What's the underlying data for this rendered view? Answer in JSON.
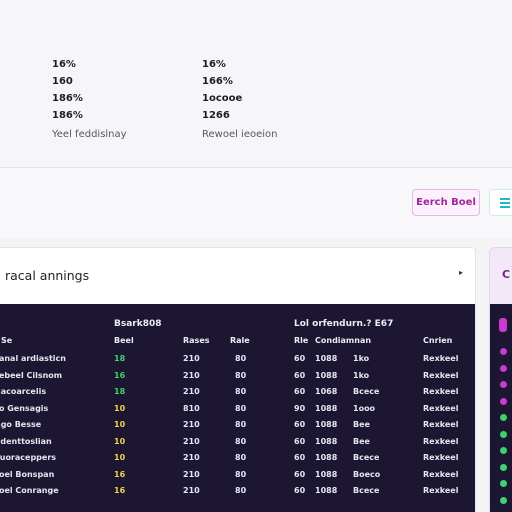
{
  "stats": {
    "left": {
      "values": [
        "16%",
        "160",
        "186%",
        "186%"
      ],
      "label": "Yeel feddislnay"
    },
    "right": {
      "values": [
        "16%",
        "166%",
        "1ocooe",
        "1266"
      ],
      "label": "Rewoel ieoeion"
    }
  },
  "toolbar": {
    "export_label": "Eerch Boel"
  },
  "card": {
    "title": "racal annings",
    "caret": "▸",
    "group_left": "Bsark808",
    "group_right": "Lol orfendurn.? E67",
    "columns": [
      "Se",
      "Beel",
      "Rases",
      "Rale",
      "Rle",
      "Condiamnan",
      "Cnrien"
    ],
    "rows": [
      {
        "name": "ranal ardiasticn",
        "score": "18",
        "score_color": "green",
        "a": "210",
        "b": "80",
        "c": "60",
        "d": "1088",
        "e": "1ko",
        "status": "Rexkeel"
      },
      {
        "name": "rebeel Cilsnom",
        "score": "16",
        "score_color": "green",
        "a": "210",
        "b": "80",
        "c": "60",
        "d": "1088",
        "e": "1ko",
        "status": "Rexkeel"
      },
      {
        "name": "nacoarcelis",
        "score": "18",
        "score_color": "green",
        "a": "210",
        "b": "80",
        "c": "60",
        "d": "1068",
        "e": "Bcece",
        "status": "Rexkeel"
      },
      {
        "name": "ro Gensagis",
        "score": "10",
        "score_color": "yellow",
        "a": "810",
        "b": "80",
        "c": "90",
        "d": "1088",
        "e": "1ooo",
        "status": "Rexkeel"
      },
      {
        "name": "ngo Besse",
        "score": "10",
        "score_color": "yellow",
        "a": "210",
        "b": "80",
        "c": "60",
        "d": "1088",
        "e": "Bee",
        "status": "Rexkeel"
      },
      {
        "name": "adenttoslian",
        "score": "10",
        "score_color": "yellow",
        "a": "210",
        "b": "80",
        "c": "60",
        "d": "1088",
        "e": "Bee",
        "status": "Rexkeel"
      },
      {
        "name": "cuoraceppers",
        "score": "10",
        "score_color": "yellow",
        "a": "210",
        "b": "80",
        "c": "60",
        "d": "1088",
        "e": "Bcece",
        "status": "Rexkeel"
      },
      {
        "name": "roel Bonspan",
        "score": "16",
        "score_color": "yellow",
        "a": "210",
        "b": "80",
        "c": "60",
        "d": "1088",
        "e": "Boeco",
        "status": "Rexkeel"
      },
      {
        "name": "roel Conrange",
        "score": "16",
        "score_color": "yellow",
        "a": "210",
        "b": "80",
        "c": "60",
        "d": "1088",
        "e": "Bcece",
        "status": "Rexkeel"
      }
    ]
  },
  "side_card": {
    "label": "C",
    "dots": [
      "#c83ad0",
      "#c83ad0",
      "#c83ad0",
      "#c83ad0",
      "#3bd36a",
      "#3bd36a",
      "#3bd36a",
      "#3bd36a",
      "#3bd36a",
      "#3bd36a"
    ]
  },
  "colors": {
    "accent": "#a0249a",
    "teal": "#22b8c0",
    "table_bg": "#1d1632",
    "good": "#3bd36a",
    "warn": "#e8d64a"
  }
}
